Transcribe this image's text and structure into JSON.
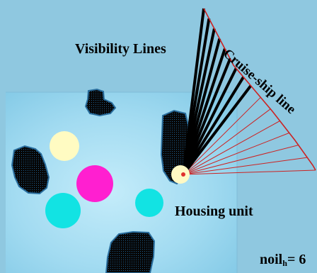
{
  "labels": {
    "visibility_lines": "Visibility Lines",
    "cruise_ship_line": "Cruise-ship line",
    "housing_unit": "Housing unit",
    "noil_prefix": "noil",
    "noil_sub": "h",
    "noil_suffix": "= 6"
  },
  "visibility": {
    "black_lines": 9,
    "red_lines": 7,
    "colors": {
      "visible": "#000000",
      "blocked": "#cc2222",
      "housing_unit": "#fff9c4"
    }
  },
  "palette": {
    "sea": "#8fc8e0",
    "land": "#a4ddf2",
    "island": "#050505",
    "island_edge": "#2a6e9e",
    "circle_yellow": "#fffbc2",
    "circle_magenta": "#ff1fd0",
    "circle_cyan": "#12e3e3"
  }
}
